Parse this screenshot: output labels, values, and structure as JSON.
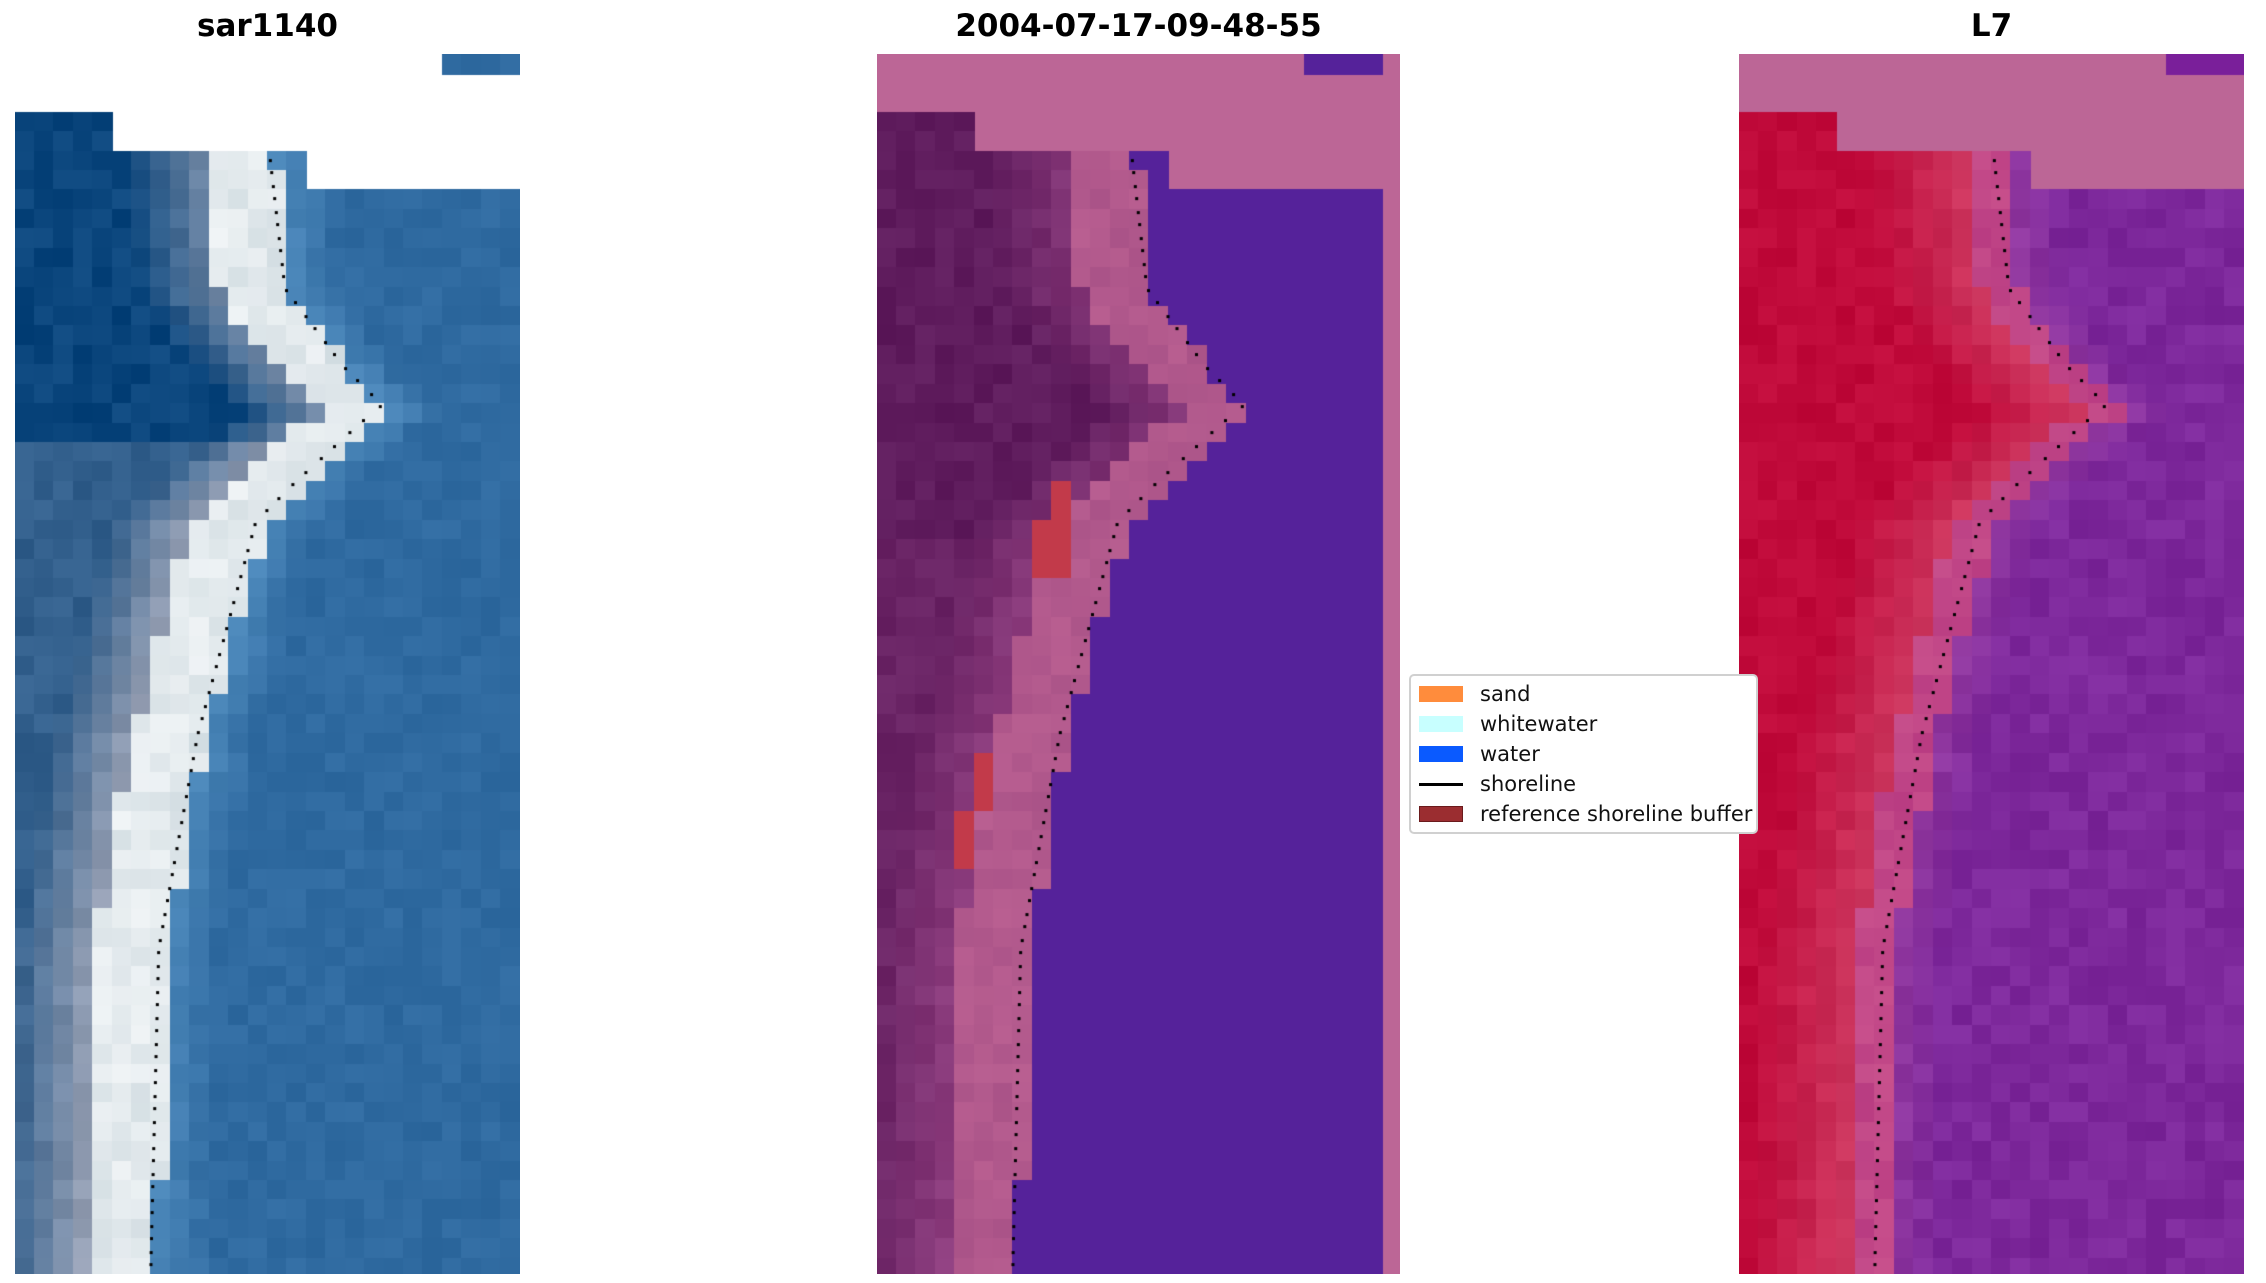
{
  "panels": [
    {
      "title": "sar1140"
    },
    {
      "title": "2004-07-17-09-48-55"
    },
    {
      "title": "L7"
    }
  ],
  "legend": {
    "items": [
      {
        "label": "sand",
        "color": "#ff8c3c"
      },
      {
        "label": "whitewater",
        "color": "#c8ffff"
      },
      {
        "label": "water",
        "color": "#0a5aff"
      },
      {
        "label": "shoreline",
        "color": "#000000"
      },
      {
        "label": "reference shoreline buffer",
        "color": "#9b2d30"
      }
    ]
  },
  "colors": {
    "mask": "#bc6696",
    "water_overlay": "#55229a"
  }
}
